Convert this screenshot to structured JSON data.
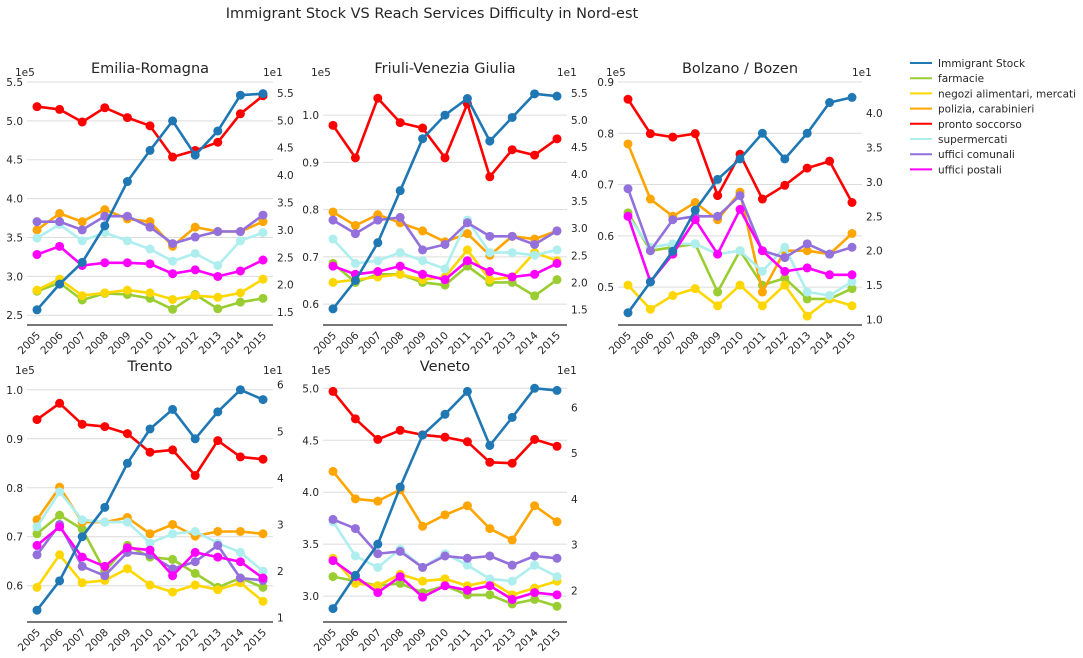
{
  "title": "Immigrant Stock VS Reach Services Difficulty in Nord-est",
  "colors": {
    "Immigrant Stock": "#1f77b4",
    "farmacie": "#9acd32",
    "negozi alimentari, mercati": "#ffd700",
    "polizia, carabinieri": "#ffa500",
    "pronto soccorso": "#ff0000",
    "supermercati": "#afeeee",
    "uffici comunali": "#9370db",
    "uffici postali": "#ff00ff",
    "grid": "#dcdcdc",
    "axis": "#262626"
  },
  "legend": [
    "Immigrant Stock",
    "farmacie",
    "negozi alimentari, mercati",
    "polizia, carabinieri",
    "pronto soccorso",
    "supermercati",
    "uffici comunali",
    "uffici postali"
  ],
  "chart_data": [
    {
      "type": "line",
      "title": "Emilia-Romagna",
      "x": [
        "2005",
        "2006",
        "2007",
        "2008",
        "2009",
        "2010",
        "2011",
        "2012",
        "2013",
        "2014",
        "2015"
      ],
      "left_axis": {
        "label": "Immigrant Stock",
        "offset_text": "1e5",
        "ticks": [
          2.5,
          3.0,
          3.5,
          4.0,
          4.5,
          5.0,
          5.5
        ],
        "ylim": [
          2.4,
          5.5
        ]
      },
      "right_axis": {
        "offset_text": "1e1",
        "ticks": [
          1.5,
          2.0,
          2.5,
          3.0,
          3.5,
          4.0,
          4.5,
          5.0,
          5.5
        ],
        "ylim": [
          1.3,
          5.7
        ]
      },
      "immigrant_stock": [
        2.57,
        2.9,
        3.18,
        3.65,
        4.22,
        4.62,
        5.0,
        4.56,
        4.87,
        5.33,
        5.35
      ],
      "series": [
        {
          "name": "farmacie",
          "values": [
            1.88,
            2.03,
            1.72,
            1.84,
            1.82,
            1.75,
            1.55,
            1.82,
            1.56,
            1.68,
            1.75
          ]
        },
        {
          "name": "negozi alimentari, mercati",
          "values": [
            1.9,
            2.1,
            1.8,
            1.85,
            1.9,
            1.85,
            1.73,
            1.8,
            1.77,
            1.85,
            2.1
          ]
        },
        {
          "name": "polizia, carabinieri",
          "values": [
            3.0,
            3.3,
            3.15,
            3.37,
            3.2,
            3.15,
            2.7,
            3.05,
            2.97,
            2.97,
            3.15
          ]
        },
        {
          "name": "pronto soccorso",
          "values": [
            5.25,
            5.2,
            4.97,
            5.23,
            5.05,
            4.9,
            4.33,
            4.45,
            4.6,
            5.12,
            5.45
          ]
        },
        {
          "name": "supermercati",
          "values": [
            2.85,
            3.1,
            2.8,
            2.95,
            2.8,
            2.65,
            2.43,
            2.57,
            2.35,
            2.8,
            2.95
          ]
        },
        {
          "name": "uffici comunali",
          "values": [
            3.15,
            3.15,
            3.0,
            3.25,
            3.25,
            3.05,
            2.75,
            2.87,
            2.97,
            2.97,
            3.27
          ]
        },
        {
          "name": "uffici postali",
          "values": [
            2.55,
            2.7,
            2.35,
            2.4,
            2.4,
            2.38,
            2.2,
            2.27,
            2.15,
            2.25,
            2.45
          ]
        }
      ]
    },
    {
      "type": "line",
      "title": "Friuli-Venezia Giulia",
      "x": [
        "2005",
        "2006",
        "2007",
        "2008",
        "2009",
        "2010",
        "2011",
        "2012",
        "2013",
        "2014",
        "2015"
      ],
      "left_axis": {
        "label": "Immigrant Stock",
        "offset_text": "1e5",
        "ticks": [
          0.6,
          0.7,
          0.8,
          0.9,
          1.0
        ],
        "ylim": [
          0.56,
          1.07
        ]
      },
      "right_axis": {
        "offset_text": "1e1",
        "ticks": [
          1.5,
          2.0,
          2.5,
          3.0,
          3.5,
          4.0,
          4.5,
          5.0,
          5.5
        ],
        "ylim": [
          1.25,
          5.7
        ]
      },
      "immigrant_stock": [
        0.59,
        0.65,
        0.73,
        0.84,
        0.95,
        1.0,
        1.035,
        0.945,
        0.995,
        1.045,
        1.04
      ],
      "series": [
        {
          "name": "farmacie",
          "values": [
            2.35,
            2.0,
            2.15,
            2.15,
            2.0,
            1.95,
            2.3,
            2.0,
            2.0,
            1.75,
            2.05
          ]
        },
        {
          "name": "negozi alimentari, mercati",
          "values": [
            2.0,
            2.05,
            2.1,
            2.15,
            2.05,
            2.1,
            2.6,
            2.05,
            2.1,
            2.55,
            2.4
          ]
        },
        {
          "name": "polizia, carabinieri",
          "values": [
            3.3,
            3.05,
            3.25,
            3.1,
            2.95,
            2.75,
            2.9,
            2.5,
            2.85,
            2.8,
            2.95
          ]
        },
        {
          "name": "pronto soccorso",
          "values": [
            4.9,
            4.3,
            5.4,
            4.95,
            4.85,
            4.3,
            5.3,
            3.95,
            4.45,
            4.35,
            4.65
          ]
        },
        {
          "name": "supermercati",
          "values": [
            2.8,
            2.35,
            2.4,
            2.55,
            2.4,
            2.25,
            3.15,
            2.55,
            2.55,
            2.5,
            2.6
          ]
        },
        {
          "name": "uffici comunali",
          "values": [
            3.15,
            2.9,
            3.15,
            3.2,
            2.6,
            2.7,
            3.1,
            2.85,
            2.85,
            2.7,
            2.95
          ]
        },
        {
          "name": "uffici postali",
          "values": [
            2.3,
            2.15,
            2.2,
            2.3,
            2.15,
            2.05,
            2.4,
            2.2,
            2.1,
            2.15,
            2.35
          ]
        }
      ]
    },
    {
      "type": "line",
      "title": "Bolzano / Bozen",
      "x": [
        "2005",
        "2006",
        "2007",
        "2008",
        "2009",
        "2010",
        "2011",
        "2012",
        "2013",
        "2014",
        "2015"
      ],
      "left_axis": {
        "label": "Immigrant Stock",
        "offset_text": "1e5",
        "ticks": [
          0.5,
          0.6,
          0.7,
          0.8,
          0.9
        ],
        "ylim": [
          0.43,
          0.9
        ]
      },
      "right_axis": {
        "offset_text": "1e1",
        "ticks": [
          1.0,
          1.5,
          2.0,
          2.5,
          3.0,
          3.5,
          4.0
        ],
        "ylim": [
          0.95,
          4.45
        ]
      },
      "immigrant_stock": [
        0.45,
        0.51,
        0.57,
        0.65,
        0.71,
        0.75,
        0.8,
        0.75,
        0.8,
        0.86,
        0.87
      ],
      "series": [
        {
          "name": "farmacie",
          "values": [
            2.55,
            2.0,
            2.05,
            2.1,
            1.4,
            2.0,
            1.5,
            1.6,
            1.3,
            1.3,
            1.45
          ]
        },
        {
          "name": "negozi alimentari, mercati",
          "values": [
            1.5,
            1.15,
            1.35,
            1.45,
            1.2,
            1.5,
            1.2,
            1.5,
            1.05,
            1.3,
            1.2
          ]
        },
        {
          "name": "polizia, carabinieri",
          "values": [
            3.55,
            2.75,
            2.5,
            2.7,
            2.45,
            2.85,
            1.4,
            2.0,
            2.0,
            1.95,
            2.25
          ]
        },
        {
          "name": "pronto soccorso",
          "values": [
            4.2,
            3.7,
            3.65,
            3.7,
            2.8,
            3.4,
            2.75,
            2.95,
            3.2,
            3.3,
            2.7
          ]
        },
        {
          "name": "supermercati",
          "values": [
            2.5,
            2.05,
            2.1,
            2.1,
            1.95,
            2.0,
            1.7,
            2.05,
            1.4,
            1.35,
            1.55
          ]
        },
        {
          "name": "uffici comunali",
          "values": [
            2.9,
            2.0,
            2.45,
            2.5,
            2.5,
            2.8,
            2.0,
            1.9,
            2.1,
            1.95,
            2.05
          ]
        },
        {
          "name": "uffici postali",
          "values": [
            2.5,
            1.55,
            1.95,
            2.45,
            1.95,
            2.6,
            2.0,
            1.7,
            1.75,
            1.65,
            1.65
          ]
        }
      ]
    },
    {
      "type": "line",
      "title": "Trento",
      "x": [
        "2005",
        "2006",
        "2007",
        "2008",
        "2009",
        "2010",
        "2011",
        "2012",
        "2013",
        "2014",
        "2015"
      ],
      "left_axis": {
        "label": "Immigrant Stock",
        "offset_text": "1e5",
        "ticks": [
          0.6,
          0.7,
          0.8,
          0.9,
          1.0
        ],
        "ylim": [
          0.53,
          1.02
        ]
      },
      "right_axis": {
        "offset_text": "1e1",
        "ticks": [
          1,
          2,
          3,
          4,
          5,
          6
        ],
        "ylim": [
          0.95,
          6.1
        ]
      },
      "immigrant_stock": [
        0.55,
        0.61,
        0.7,
        0.76,
        0.85,
        0.92,
        0.96,
        0.9,
        0.955,
        1.0,
        0.98
      ],
      "series": [
        {
          "name": "farmacie",
          "values": [
            2.8,
            3.2,
            2.9,
            2.0,
            2.55,
            2.3,
            2.25,
            1.95,
            1.65,
            1.85,
            1.65
          ]
        },
        {
          "name": "negozi alimentari, mercati",
          "values": [
            1.65,
            2.35,
            1.75,
            1.8,
            2.05,
            1.7,
            1.55,
            1.7,
            1.6,
            1.75,
            1.35
          ]
        },
        {
          "name": "polizia, carabinieri",
          "values": [
            3.1,
            3.8,
            3.05,
            3.05,
            3.15,
            2.8,
            3.0,
            2.75,
            2.85,
            2.85,
            2.8
          ]
        },
        {
          "name": "pronto soccorso",
          "values": [
            5.25,
            5.6,
            5.15,
            5.1,
            4.95,
            4.55,
            4.6,
            4.05,
            4.8,
            4.45,
            4.4
          ]
        },
        {
          "name": "supermercati",
          "values": [
            2.95,
            3.7,
            3.1,
            3.05,
            3.05,
            2.6,
            2.8,
            2.85,
            2.6,
            2.4,
            2.0
          ]
        },
        {
          "name": "uffici comunali",
          "values": [
            2.35,
            3.0,
            2.1,
            1.9,
            2.4,
            2.35,
            2.05,
            2.2,
            2.55,
            1.85,
            1.8
          ]
        },
        {
          "name": "uffici postali",
          "values": [
            2.55,
            2.95,
            2.3,
            2.1,
            2.5,
            2.45,
            1.9,
            2.4,
            2.3,
            2.2,
            1.85
          ]
        }
      ]
    },
    {
      "type": "line",
      "title": "Veneto",
      "x": [
        "2005",
        "2006",
        "2007",
        "2008",
        "2009",
        "2010",
        "2011",
        "2012",
        "2013",
        "2014",
        "2015"
      ],
      "left_axis": {
        "label": "Immigrant Stock",
        "offset_text": "1e5",
        "ticks": [
          3.0,
          3.5,
          4.0,
          4.5,
          5.0
        ],
        "ylim": [
          2.77,
          5.08
        ]
      },
      "right_axis": {
        "offset_text": "1e1",
        "ticks": [
          2,
          3,
          4,
          5,
          6
        ],
        "ylim": [
          1.35,
          6.6
        ]
      },
      "immigrant_stock": [
        2.88,
        3.2,
        3.5,
        4.05,
        4.55,
        4.75,
        4.97,
        4.45,
        4.72,
        5.0,
        4.98
      ],
      "series": [
        {
          "name": "farmacie",
          "values": [
            2.3,
            2.2,
            2.1,
            2.15,
            1.95,
            2.1,
            1.9,
            1.9,
            1.7,
            1.8,
            1.65
          ]
        },
        {
          "name": "negozi alimentari, mercati",
          "values": [
            2.7,
            2.15,
            2.1,
            2.35,
            2.2,
            2.25,
            2.1,
            2.2,
            1.9,
            2.05,
            2.2
          ]
        },
        {
          "name": "polizia, carabinieri",
          "values": [
            4.6,
            4.0,
            3.95,
            4.2,
            3.4,
            3.65,
            3.85,
            3.35,
            3.1,
            3.85,
            3.5
          ]
        },
        {
          "name": "pronto soccorso",
          "values": [
            6.35,
            5.75,
            5.3,
            5.5,
            5.4,
            5.35,
            5.25,
            4.8,
            4.78,
            5.3,
            5.15
          ]
        },
        {
          "name": "supermercati",
          "values": [
            3.5,
            2.75,
            2.5,
            2.9,
            2.5,
            2.8,
            2.55,
            2.25,
            2.2,
            2.55,
            2.3
          ]
        },
        {
          "name": "uffici comunali",
          "values": [
            3.55,
            3.35,
            2.8,
            2.85,
            2.5,
            2.75,
            2.7,
            2.75,
            2.55,
            2.75,
            2.7
          ]
        },
        {
          "name": "uffici postali",
          "values": [
            2.65,
            2.3,
            1.95,
            2.3,
            1.85,
            2.1,
            2.0,
            2.1,
            1.8,
            1.95,
            1.9
          ]
        }
      ]
    }
  ]
}
